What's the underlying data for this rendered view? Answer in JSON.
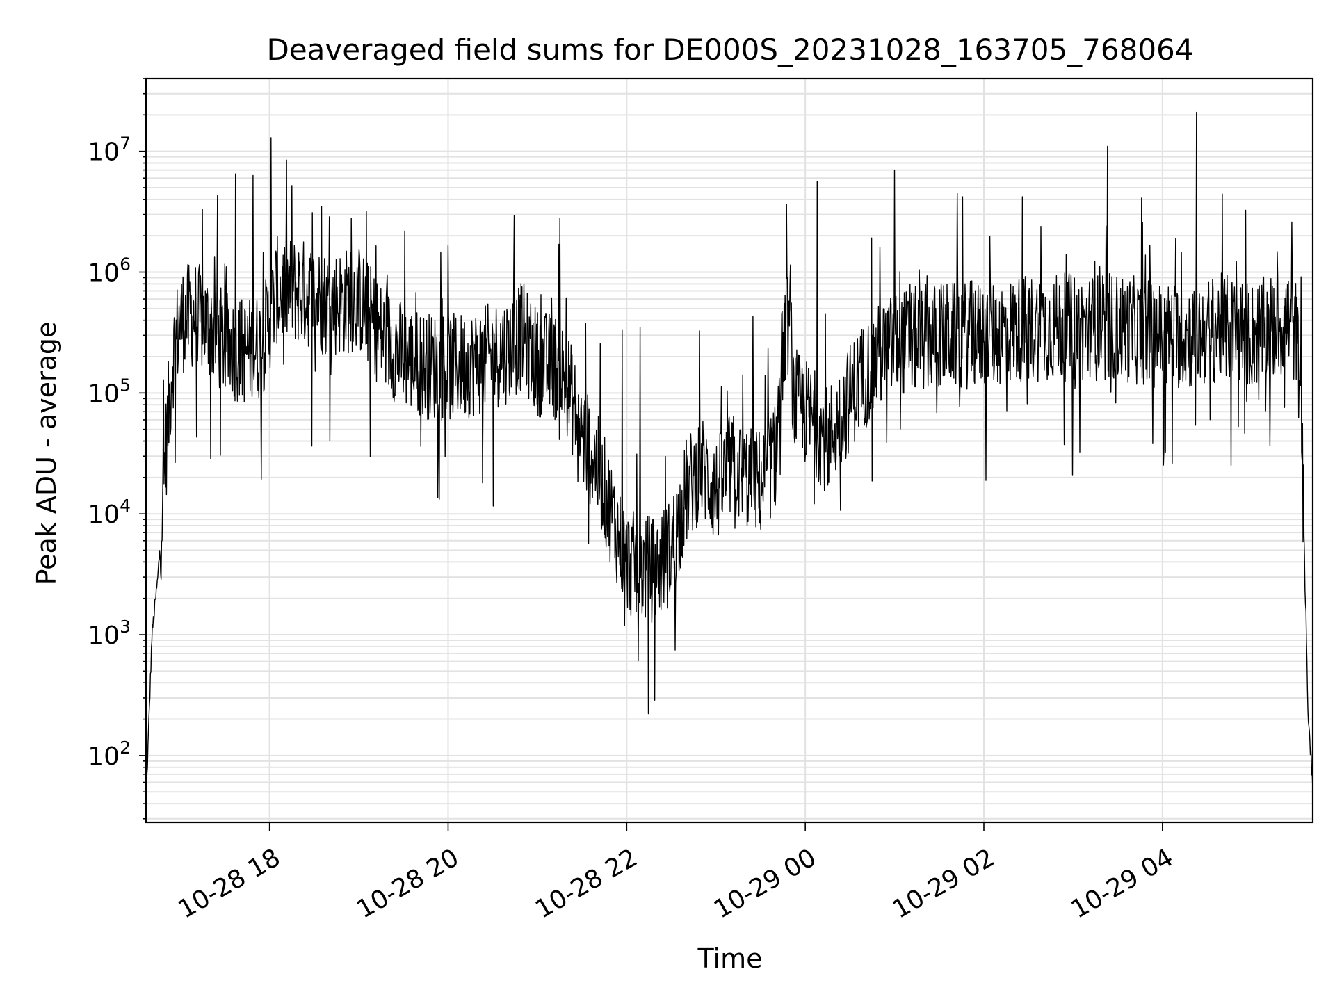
{
  "chart_data": {
    "type": "line",
    "title": "Deaveraged field sums for DE000S_20231028_163705_768064",
    "xlabel": "Time",
    "ylabel": "Peak ADU - average",
    "yscale": "log",
    "ylim": [
      28,
      40000000
    ],
    "xlim": [
      "2023-10-28T16:37",
      "2023-10-29T05:41"
    ],
    "grid": true,
    "line_color": "#000000",
    "x_ticks": [
      {
        "time": "2023-10-28T18:00",
        "label": "10-28 18"
      },
      {
        "time": "2023-10-28T20:00",
        "label": "10-28 20"
      },
      {
        "time": "2023-10-28T22:00",
        "label": "10-28 22"
      },
      {
        "time": "2023-10-29T00:00",
        "label": "10-29 00"
      },
      {
        "time": "2023-10-29T02:00",
        "label": "10-29 02"
      },
      {
        "time": "2023-10-29T04:00",
        "label": "10-29 04"
      }
    ],
    "y_ticks": [
      {
        "value": 100,
        "base": "10",
        "exp": "2"
      },
      {
        "value": 1000,
        "base": "10",
        "exp": "3"
      },
      {
        "value": 10000,
        "base": "10",
        "exp": "4"
      },
      {
        "value": 100000,
        "base": "10",
        "exp": "5"
      },
      {
        "value": 1000000,
        "base": "10",
        "exp": "6"
      },
      {
        "value": 10000000,
        "base": "10",
        "exp": "7"
      }
    ],
    "series": [
      {
        "baseline": {
          "x": [
            "2023-10-28T16:37",
            "2023-10-28T16:41",
            "2023-10-28T16:45",
            "2023-10-28T16:50",
            "2023-10-28T16:55",
            "2023-10-28T17:00",
            "2023-10-28T17:10",
            "2023-10-28T17:20",
            "2023-10-28T17:30",
            "2023-10-28T17:45",
            "2023-10-28T17:55",
            "2023-10-28T18:05",
            "2023-10-28T18:20",
            "2023-10-28T18:40",
            "2023-10-28T19:00",
            "2023-10-28T19:15",
            "2023-10-28T19:30",
            "2023-10-28T19:45",
            "2023-10-28T20:00",
            "2023-10-28T20:20",
            "2023-10-28T20:40",
            "2023-10-28T20:50",
            "2023-10-28T21:00",
            "2023-10-28T21:15",
            "2023-10-28T21:20",
            "2023-10-28T21:30",
            "2023-10-28T21:40",
            "2023-10-28T21:50",
            "2023-10-28T22:00",
            "2023-10-28T22:10",
            "2023-10-28T22:20",
            "2023-10-28T22:30",
            "2023-10-28T22:40",
            "2023-10-28T22:50",
            "2023-10-28T23:00",
            "2023-10-28T23:10",
            "2023-10-28T23:20",
            "2023-10-28T23:30",
            "2023-10-28T23:40",
            "2023-10-28T23:45",
            "2023-10-28T23:50",
            "2023-10-28T23:52",
            "2023-10-28T23:55",
            "2023-10-29T00:05",
            "2023-10-29T00:15",
            "2023-10-29T00:25",
            "2023-10-29T00:35",
            "2023-10-29T00:50",
            "2023-10-29T01:00",
            "2023-10-29T01:30",
            "2023-10-29T02:00",
            "2023-10-29T02:30",
            "2023-10-29T03:00",
            "2023-10-29T03:30",
            "2023-10-29T04:00",
            "2023-10-29T04:20",
            "2023-10-29T04:40",
            "2023-10-29T05:00",
            "2023-10-29T05:15",
            "2023-10-29T05:25",
            "2023-10-29T05:30",
            "2023-10-29T05:33",
            "2023-10-29T05:36",
            "2023-10-29T05:38",
            "2023-10-29T05:41"
          ],
          "y": [
            40,
            1000,
            3000,
            30000,
            200000,
            400000,
            450000,
            350000,
            250000,
            220000,
            250000,
            700000,
            700000,
            550000,
            600000,
            300000,
            200000,
            170000,
            160000,
            180000,
            230000,
            300000,
            180000,
            160000,
            120000,
            45000,
            25000,
            10000,
            4000,
            3500,
            3500,
            5000,
            15000,
            25000,
            15000,
            25000,
            20000,
            18000,
            30000,
            250000,
            450000,
            90000,
            80000,
            60000,
            40000,
            70000,
            120000,
            200000,
            250000,
            300000,
            300000,
            350000,
            350000,
            350000,
            300000,
            300000,
            350000,
            300000,
            350000,
            400000,
            300000,
            100000,
            2000,
            200,
            60
          ]
        },
        "spikes": [
          {
            "x": "2023-10-28T17:25",
            "y": 4300000
          },
          {
            "x": "2023-10-28T17:37",
            "y": 6500000
          },
          {
            "x": "2023-10-28T17:49",
            "y": 6300000
          },
          {
            "x": "2023-10-28T18:01",
            "y": 13000000
          },
          {
            "x": "2023-10-28T18:15",
            "y": 5200000
          },
          {
            "x": "2023-10-28T18:35",
            "y": 3500000
          },
          {
            "x": "2023-10-28T18:55",
            "y": 2800000
          },
          {
            "x": "2023-10-28T21:15",
            "y": 2800000
          },
          {
            "x": "2023-10-28T21:57",
            "y": 330000
          },
          {
            "x": "2023-10-28T22:09",
            "y": 350000
          },
          {
            "x": "2023-10-28T23:25",
            "y": 430000
          },
          {
            "x": "2023-10-29T00:08",
            "y": 5600000
          },
          {
            "x": "2023-10-29T00:50",
            "y": 1600000
          },
          {
            "x": "2023-10-29T01:00",
            "y": 7000000
          },
          {
            "x": "2023-10-29T01:42",
            "y": 4500000
          },
          {
            "x": "2023-10-29T03:23",
            "y": 11000000
          },
          {
            "x": "2023-10-29T04:23",
            "y": 21000000
          },
          {
            "x": "2023-10-29T05:27",
            "y": 2600000
          }
        ]
      }
    ]
  }
}
